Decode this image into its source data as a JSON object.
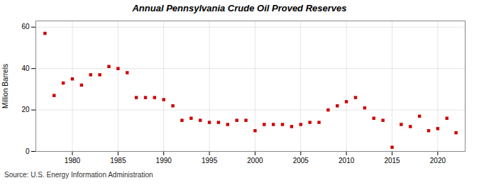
{
  "chart_data": {
    "type": "scatter",
    "title": "Annual Pennsylvania Crude Oil Proved Reserves",
    "ylabel": "Million Barrels",
    "source": "Source: U.S. Energy Information Administration",
    "x": [
      1977,
      1978,
      1979,
      1980,
      1981,
      1982,
      1983,
      1984,
      1985,
      1986,
      1987,
      1988,
      1989,
      1990,
      1991,
      1992,
      1993,
      1994,
      1995,
      1996,
      1997,
      1998,
      1999,
      2000,
      2001,
      2002,
      2003,
      2004,
      2005,
      2006,
      2007,
      2008,
      2009,
      2010,
      2011,
      2012,
      2013,
      2014,
      2015,
      2016,
      2017,
      2018,
      2019,
      2020,
      2021,
      2022
    ],
    "values": [
      57,
      27,
      33,
      35,
      32,
      37,
      37,
      41,
      40,
      38,
      26,
      26,
      26,
      25,
      22,
      15,
      16,
      15,
      14,
      14,
      13,
      15,
      15,
      10,
      13,
      13,
      13,
      12,
      13,
      14,
      14,
      20,
      22,
      24,
      26,
      21,
      16,
      15,
      2,
      13,
      12,
      17,
      10,
      11,
      16,
      9
    ],
    "color": "#cc0000",
    "marker": "square",
    "grid": true,
    "xlim": [
      1976,
      2023
    ],
    "xticks": [
      1980,
      1985,
      1990,
      1995,
      2000,
      2005,
      2010,
      2015,
      2020
    ],
    "ylim": [
      0,
      63
    ],
    "yticks": [
      0,
      20,
      40,
      60
    ]
  }
}
